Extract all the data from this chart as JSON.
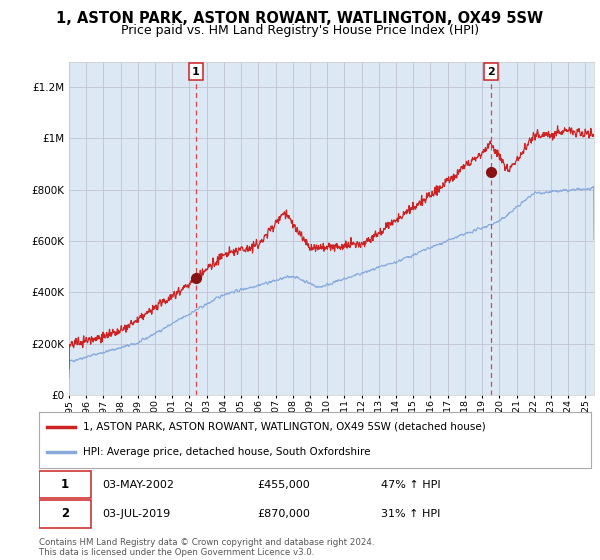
{
  "title": "1, ASTON PARK, ASTON ROWANT, WATLINGTON, OX49 5SW",
  "subtitle": "Price paid vs. HM Land Registry's House Price Index (HPI)",
  "fig_bg": "#ffffff",
  "plot_bg_color": "#dce9f5",
  "red_line_label": "1, ASTON PARK, ASTON ROWANT, WATLINGTON, OX49 5SW (detached house)",
  "blue_line_label": "HPI: Average price, detached house, South Oxfordshire",
  "marker1_date_x": 2002.35,
  "marker1_y": 455000,
  "marker1_label": "1",
  "marker2_date_x": 2019.5,
  "marker2_y": 870000,
  "marker2_label": "2",
  "ymin": 0,
  "ymax": 1300000,
  "xmin": 1995,
  "xmax": 2025.5,
  "footer": "Contains HM Land Registry data © Crown copyright and database right 2024.\nThis data is licensed under the Open Government Licence v3.0.",
  "red_color": "#cc2222",
  "blue_color": "#88aadd",
  "marker_color": "#881111",
  "vline_color": "#dd4444",
  "grid_color": "#bbbbcc",
  "border_color": "#cc2222",
  "title_fontsize": 10.5,
  "subtitle_fontsize": 9,
  "tick_years": [
    1995,
    1996,
    1997,
    1998,
    1999,
    2000,
    2001,
    2002,
    2003,
    2004,
    2005,
    2006,
    2007,
    2008,
    2009,
    2010,
    2011,
    2012,
    2013,
    2014,
    2015,
    2016,
    2017,
    2018,
    2019,
    2020,
    2021,
    2022,
    2023,
    2024,
    2025
  ],
  "yticks": [
    0,
    200000,
    400000,
    600000,
    800000,
    1000000,
    1200000
  ]
}
